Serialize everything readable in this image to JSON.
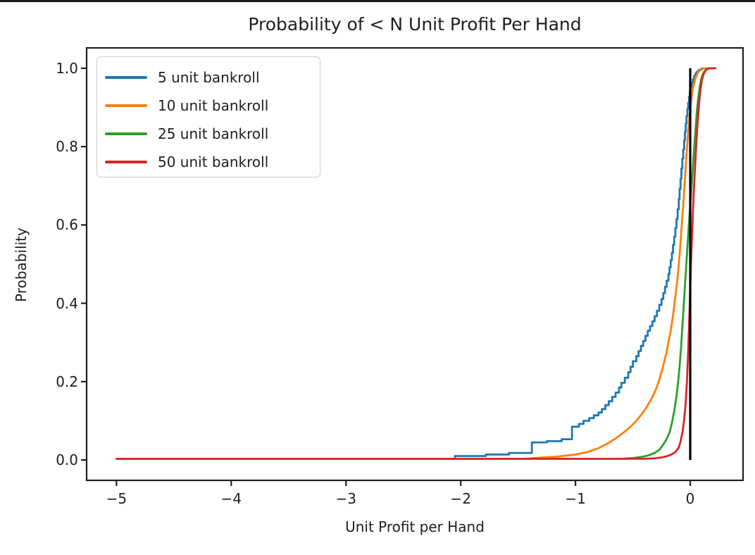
{
  "figure": {
    "background": "#ffffff",
    "top_border_color": "#1b1b1b",
    "text_color": "#1f1f1f"
  },
  "chart_data": {
    "type": "line",
    "subtype": "empirical-cdf",
    "title": "Probability of < N Unit Profit Per Hand",
    "xlabel": "Unit Profit per Hand",
    "ylabel": "Probability",
    "xlim": [
      -5.26,
      0.46
    ],
    "ylim": [
      -0.052,
      1.052
    ],
    "grid": false,
    "legend_position": "upper left",
    "x_axis": {
      "tick_values": [
        -5,
        -4,
        -3,
        -2,
        -1,
        0
      ],
      "tick_labels": [
        "−5",
        "−4",
        "−3",
        "−2",
        "−1",
        "0"
      ]
    },
    "y_axis": {
      "tick_values": [
        0.0,
        0.2,
        0.4,
        0.6,
        0.8,
        1.0
      ],
      "tick_labels": [
        "0.0",
        "0.2",
        "0.4",
        "0.6",
        "0.8",
        "1.0"
      ]
    },
    "annotations": [
      {
        "type": "vline",
        "x": 0,
        "y0": 0.0,
        "y1": 1.0,
        "color": "#000000",
        "name": "zero-reference-line"
      }
    ],
    "series": [
      {
        "name": "5 unit bankroll",
        "color": "#1f77b4",
        "interp": "step",
        "points": [
          [
            -5.0,
            0.003
          ],
          [
            -2.05,
            0.01
          ],
          [
            -1.78,
            0.014
          ],
          [
            -1.58,
            0.018
          ],
          [
            -1.38,
            0.045
          ],
          [
            -1.25,
            0.048
          ],
          [
            -1.12,
            0.053
          ],
          [
            -1.03,
            0.085
          ],
          [
            -0.97,
            0.092
          ],
          [
            -0.93,
            0.1
          ],
          [
            -0.88,
            0.107
          ],
          [
            -0.84,
            0.114
          ],
          [
            -0.8,
            0.121
          ],
          [
            -0.77,
            0.13
          ],
          [
            -0.74,
            0.14
          ],
          [
            -0.71,
            0.15
          ],
          [
            -0.68,
            0.161
          ],
          [
            -0.65,
            0.172
          ],
          [
            -0.62,
            0.185
          ],
          [
            -0.6,
            0.197
          ],
          [
            -0.57,
            0.21
          ],
          [
            -0.54,
            0.224
          ],
          [
            -0.52,
            0.238
          ],
          [
            -0.5,
            0.252
          ],
          [
            -0.47,
            0.265
          ],
          [
            -0.45,
            0.278
          ],
          [
            -0.43,
            0.291
          ],
          [
            -0.41,
            0.304
          ],
          [
            -0.39,
            0.317
          ],
          [
            -0.37,
            0.33
          ],
          [
            -0.35,
            0.342
          ],
          [
            -0.33,
            0.354
          ],
          [
            -0.31,
            0.367
          ],
          [
            -0.29,
            0.381
          ],
          [
            -0.27,
            0.396
          ],
          [
            -0.25,
            0.411
          ],
          [
            -0.235,
            0.426
          ],
          [
            -0.22,
            0.442
          ],
          [
            -0.205,
            0.458
          ],
          [
            -0.19,
            0.475
          ],
          [
            -0.18,
            0.492
          ],
          [
            -0.17,
            0.51
          ],
          [
            -0.16,
            0.529
          ],
          [
            -0.15,
            0.549
          ],
          [
            -0.14,
            0.57
          ],
          [
            -0.13,
            0.592
          ],
          [
            -0.12,
            0.615
          ],
          [
            -0.11,
            0.64
          ],
          [
            -0.1,
            0.666
          ],
          [
            -0.093,
            0.692
          ],
          [
            -0.085,
            0.718
          ],
          [
            -0.077,
            0.744
          ],
          [
            -0.069,
            0.769
          ],
          [
            -0.061,
            0.793
          ],
          [
            -0.053,
            0.816
          ],
          [
            -0.046,
            0.838
          ],
          [
            -0.039,
            0.859
          ],
          [
            -0.032,
            0.878
          ],
          [
            -0.025,
            0.896
          ],
          [
            -0.018,
            0.912
          ],
          [
            -0.011,
            0.927
          ],
          [
            -0.004,
            0.941
          ],
          [
            0.004,
            0.953
          ],
          [
            0.013,
            0.963
          ],
          [
            0.023,
            0.972
          ],
          [
            0.034,
            0.98
          ],
          [
            0.046,
            0.987
          ],
          [
            0.06,
            0.992
          ],
          [
            0.076,
            0.996
          ],
          [
            0.095,
            0.999
          ],
          [
            0.115,
            1.0
          ],
          [
            0.21,
            1.0
          ]
        ]
      },
      {
        "name": "10 unit bankroll",
        "color": "#ff7f0e",
        "interp": "linear",
        "points": [
          [
            -5.0,
            0.003
          ],
          [
            -1.45,
            0.003
          ],
          [
            -1.3,
            0.006
          ],
          [
            -1.15,
            0.009
          ],
          [
            -1.0,
            0.014
          ],
          [
            -0.9,
            0.02
          ],
          [
            -0.8,
            0.03
          ],
          [
            -0.72,
            0.042
          ],
          [
            -0.65,
            0.055
          ],
          [
            -0.58,
            0.07
          ],
          [
            -0.52,
            0.085
          ],
          [
            -0.47,
            0.1
          ],
          [
            -0.42,
            0.118
          ],
          [
            -0.38,
            0.135
          ],
          [
            -0.34,
            0.155
          ],
          [
            -0.3,
            0.18
          ],
          [
            -0.27,
            0.205
          ],
          [
            -0.24,
            0.235
          ],
          [
            -0.21,
            0.27
          ],
          [
            -0.19,
            0.3
          ],
          [
            -0.17,
            0.33
          ],
          [
            -0.155,
            0.36
          ],
          [
            -0.14,
            0.392
          ],
          [
            -0.125,
            0.428
          ],
          [
            -0.11,
            0.466
          ],
          [
            -0.1,
            0.5
          ],
          [
            -0.09,
            0.535
          ],
          [
            -0.08,
            0.575
          ],
          [
            -0.07,
            0.615
          ],
          [
            -0.06,
            0.655
          ],
          [
            -0.05,
            0.7
          ],
          [
            -0.04,
            0.745
          ],
          [
            -0.03,
            0.79
          ],
          [
            -0.02,
            0.832
          ],
          [
            -0.01,
            0.866
          ],
          [
            0.0,
            0.896
          ],
          [
            0.01,
            0.922
          ],
          [
            0.02,
            0.944
          ],
          [
            0.035,
            0.963
          ],
          [
            0.05,
            0.978
          ],
          [
            0.07,
            0.99
          ],
          [
            0.09,
            0.996
          ],
          [
            0.12,
            1.0
          ],
          [
            0.21,
            1.0
          ]
        ]
      },
      {
        "name": "25 unit bankroll",
        "color": "#2ca02c",
        "interp": "linear",
        "points": [
          [
            -5.0,
            0.003
          ],
          [
            -0.6,
            0.003
          ],
          [
            -0.5,
            0.005
          ],
          [
            -0.42,
            0.008
          ],
          [
            -0.36,
            0.012
          ],
          [
            -0.31,
            0.018
          ],
          [
            -0.27,
            0.026
          ],
          [
            -0.24,
            0.037
          ],
          [
            -0.21,
            0.051
          ],
          [
            -0.18,
            0.07
          ],
          [
            -0.16,
            0.094
          ],
          [
            -0.14,
            0.124
          ],
          [
            -0.12,
            0.162
          ],
          [
            -0.105,
            0.2
          ],
          [
            -0.092,
            0.242
          ],
          [
            -0.08,
            0.287
          ],
          [
            -0.07,
            0.333
          ],
          [
            -0.06,
            0.38
          ],
          [
            -0.05,
            0.427
          ],
          [
            -0.04,
            0.474
          ],
          [
            -0.03,
            0.52
          ],
          [
            -0.02,
            0.565
          ],
          [
            -0.01,
            0.608
          ],
          [
            0.0,
            0.65
          ],
          [
            0.01,
            0.692
          ],
          [
            0.02,
            0.735
          ],
          [
            0.03,
            0.778
          ],
          [
            0.04,
            0.82
          ],
          [
            0.05,
            0.86
          ],
          [
            0.06,
            0.897
          ],
          [
            0.072,
            0.93
          ],
          [
            0.085,
            0.957
          ],
          [
            0.1,
            0.977
          ],
          [
            0.118,
            0.99
          ],
          [
            0.14,
            0.997
          ],
          [
            0.17,
            1.0
          ],
          [
            0.21,
            1.0
          ]
        ]
      },
      {
        "name": "50 unit bankroll",
        "color": "#d62728",
        "interp": "linear",
        "points": [
          [
            -5.0,
            0.003
          ],
          [
            -0.4,
            0.003
          ],
          [
            -0.32,
            0.004
          ],
          [
            -0.26,
            0.006
          ],
          [
            -0.21,
            0.009
          ],
          [
            -0.17,
            0.013
          ],
          [
            -0.13,
            0.02
          ],
          [
            -0.1,
            0.032
          ],
          [
            -0.082,
            0.05
          ],
          [
            -0.066,
            0.074
          ],
          [
            -0.052,
            0.105
          ],
          [
            -0.04,
            0.145
          ],
          [
            -0.03,
            0.195
          ],
          [
            -0.021,
            0.253
          ],
          [
            -0.013,
            0.318
          ],
          [
            -0.006,
            0.385
          ],
          [
            0.0,
            0.44
          ],
          [
            0.006,
            0.495
          ],
          [
            0.013,
            0.555
          ],
          [
            0.021,
            0.617
          ],
          [
            0.03,
            0.678
          ],
          [
            0.04,
            0.737
          ],
          [
            0.05,
            0.792
          ],
          [
            0.06,
            0.841
          ],
          [
            0.07,
            0.884
          ],
          [
            0.08,
            0.919
          ],
          [
            0.09,
            0.947
          ],
          [
            0.101,
            0.968
          ],
          [
            0.113,
            0.983
          ],
          [
            0.127,
            0.992
          ],
          [
            0.143,
            0.997
          ],
          [
            0.162,
            0.999
          ],
          [
            0.185,
            1.0
          ],
          [
            0.22,
            1.0
          ]
        ]
      }
    ]
  }
}
